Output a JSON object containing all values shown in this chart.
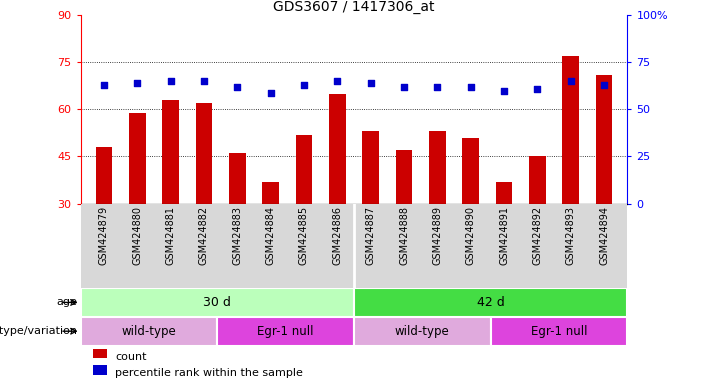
{
  "title": "GDS3607 / 1417306_at",
  "samples": [
    "GSM424879",
    "GSM424880",
    "GSM424881",
    "GSM424882",
    "GSM424883",
    "GSM424884",
    "GSM424885",
    "GSM424886",
    "GSM424887",
    "GSM424888",
    "GSM424889",
    "GSM424890",
    "GSM424891",
    "GSM424892",
    "GSM424893",
    "GSM424894"
  ],
  "counts": [
    48,
    59,
    63,
    62,
    46,
    37,
    52,
    65,
    53,
    47,
    53,
    51,
    37,
    45,
    77,
    71
  ],
  "percentiles": [
    63,
    64,
    65,
    65,
    62,
    59,
    63,
    65,
    64,
    62,
    62,
    62,
    60,
    61,
    65,
    63
  ],
  "bar_color": "#cc0000",
  "dot_color": "#0000cc",
  "left_ylim": [
    30,
    90
  ],
  "right_ylim": [
    0,
    100
  ],
  "left_yticks": [
    30,
    45,
    60,
    75,
    90
  ],
  "right_yticks": [
    0,
    25,
    50,
    75,
    100
  ],
  "right_yticklabels": [
    "0",
    "25",
    "50",
    "75",
    "100%"
  ],
  "grid_vals": [
    45,
    60,
    75
  ],
  "age_groups": [
    {
      "label": "30 d",
      "start": 0,
      "end": 8,
      "color": "#bbffbb"
    },
    {
      "label": "42 d",
      "start": 8,
      "end": 16,
      "color": "#44dd44"
    }
  ],
  "genotype_groups": [
    {
      "label": "wild-type",
      "start": 0,
      "end": 4,
      "color": "#e0aadd"
    },
    {
      "label": "Egr-1 null",
      "start": 4,
      "end": 8,
      "color": "#dd44dd"
    },
    {
      "label": "wild-type",
      "start": 8,
      "end": 12,
      "color": "#e0aadd"
    },
    {
      "label": "Egr-1 null",
      "start": 12,
      "end": 16,
      "color": "#dd44dd"
    }
  ],
  "label_age": "age",
  "label_genotype": "genotype/variation",
  "legend_count": "count",
  "legend_percentile": "percentile rank within the sample",
  "background_color": "#ffffff",
  "tick_bg": "#d8d8d8"
}
